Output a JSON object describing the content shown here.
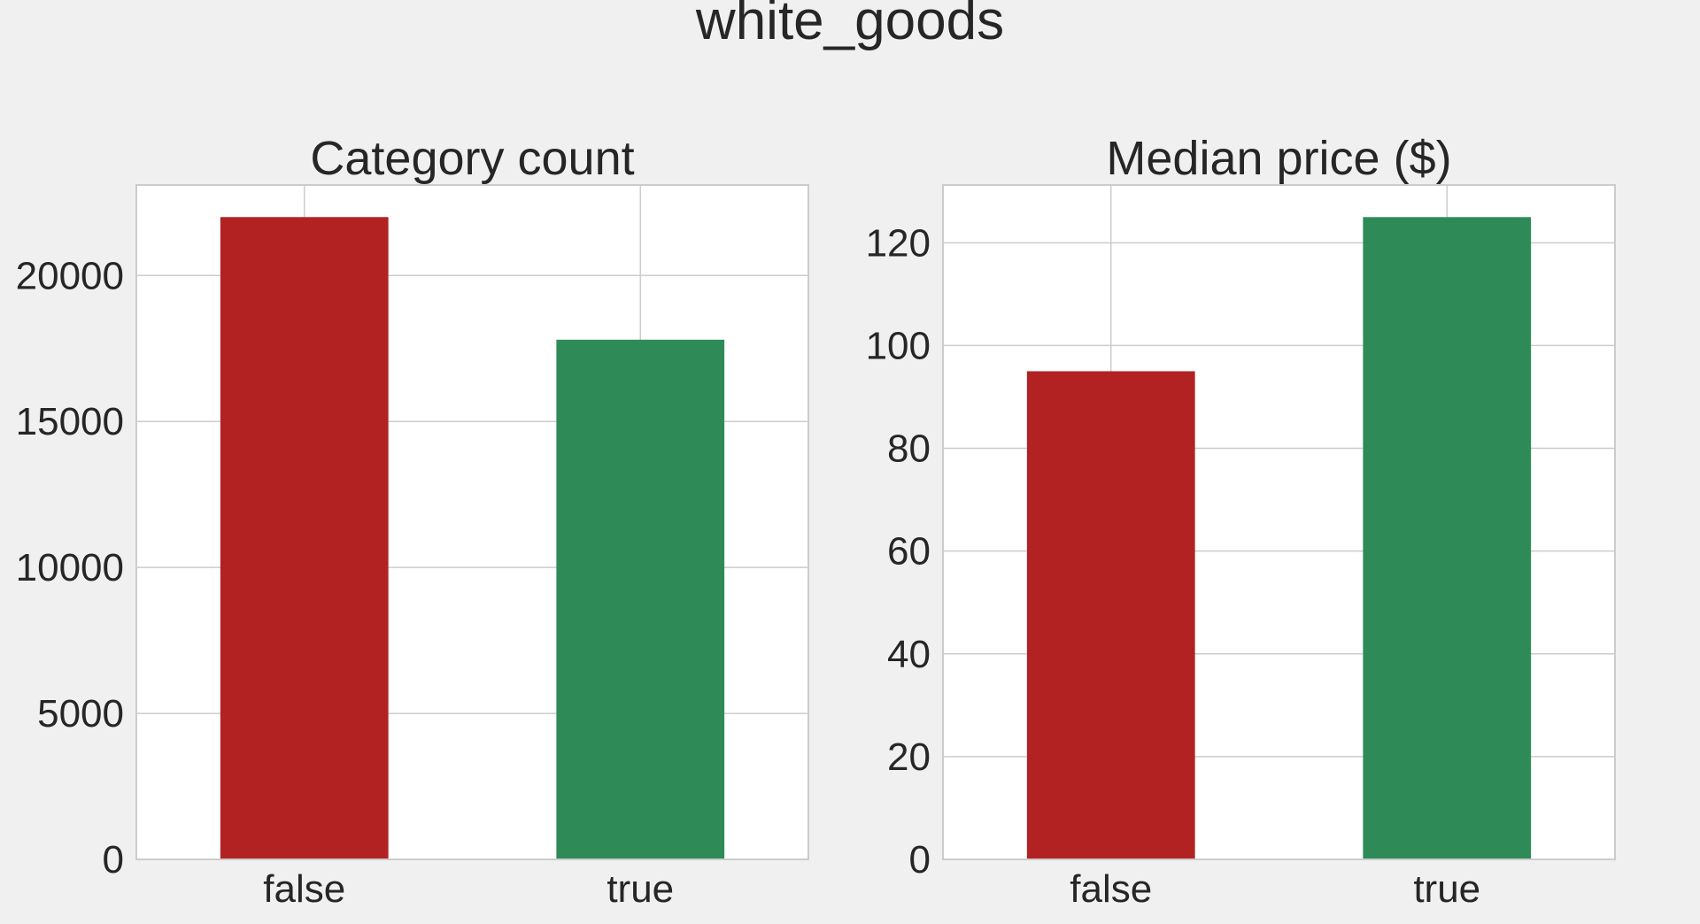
{
  "suptitle": "white_goods",
  "colors": {
    "background": "#f0f0f0",
    "panel": "#ffffff",
    "grid": "#cccccc",
    "false_bar": "#b22222",
    "true_bar": "#2e8b57",
    "text": "#262626"
  },
  "chart_data": [
    {
      "type": "bar",
      "title": "Category count",
      "categories": [
        "false",
        "true"
      ],
      "values": [
        22000,
        17800
      ],
      "bar_colors": [
        "#b22222",
        "#2e8b57"
      ],
      "xlabel": "",
      "ylabel": "",
      "ylim": [
        0,
        23100
      ],
      "yticks": [
        0,
        5000,
        10000,
        15000,
        20000
      ],
      "grid": true
    },
    {
      "type": "bar",
      "title": "Median price ($)",
      "categories": [
        "false",
        "true"
      ],
      "values": [
        95,
        125
      ],
      "bar_colors": [
        "#b22222",
        "#2e8b57"
      ],
      "xlabel": "",
      "ylabel": "",
      "ylim": [
        0,
        131.25
      ],
      "yticks": [
        0,
        20,
        40,
        60,
        80,
        100,
        120
      ],
      "grid": true
    }
  ]
}
